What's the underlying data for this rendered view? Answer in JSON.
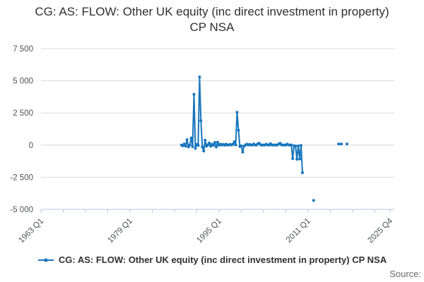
{
  "title": "CG: AS: FLOW: Other UK equity (inc direct investment in property) CP NSA",
  "source_label": "Source:",
  "legend": {
    "series_label": "CG: AS: FLOW: Other UK equity (inc direct investment in property) CP NSA",
    "marker_icon": "line-with-dot-icon"
  },
  "colors": {
    "series": "#1776bd",
    "grid": "#d8d8d8",
    "axis": "#b9c9d9",
    "tick_label": "#4e5256",
    "title_text": "#2f2f2f",
    "source_text": "#6b6b6b"
  },
  "chart_data": {
    "type": "line",
    "title": "CG: AS: FLOW: Other UK equity (inc direct investment in property) CP NSA",
    "xlabel": "",
    "ylabel": "",
    "grid": "horizontal",
    "legend_position": "bottom",
    "y_axis": {
      "min": -5000,
      "max": 7500,
      "ticks": [
        {
          "v": 7500,
          "label": "7 500"
        },
        {
          "v": 5000,
          "label": "5 000"
        },
        {
          "v": 2500,
          "label": "2 500"
        },
        {
          "v": 0,
          "label": "0"
        },
        {
          "v": -2500,
          "label": "-2 500"
        },
        {
          "v": -5000,
          "label": "-5 000"
        }
      ]
    },
    "x_axis": {
      "min_t": 1963.0,
      "max_t": 2025.75,
      "minor_ticks": [
        1963,
        1967,
        1971,
        1975,
        1979,
        1983,
        1987,
        1991,
        1995,
        1999,
        2003,
        2007,
        2011,
        2015,
        2019,
        2023,
        2025.75
      ],
      "labeled_ticks": [
        {
          "label": "1963 Q1",
          "t": 1963.0
        },
        {
          "label": "1979 Q1",
          "t": 1979.0
        },
        {
          "label": "1995 Q1",
          "t": 1995.0
        },
        {
          "label": "2011 Q1",
          "t": 2011.0
        },
        {
          "label": "2025 Q4",
          "t": 2025.75
        }
      ]
    },
    "series": [
      {
        "name": "CG: AS: FLOW: Other UK equity (inc direct investment in property) CP NSA",
        "color": "#1776bd",
        "segments": [
          [
            [
              "1988 Q2",
              0
            ],
            [
              "1988 Q3",
              -60
            ],
            [
              "1988 Q4",
              80
            ],
            [
              "1989 Q1",
              -80
            ],
            [
              "1989 Q2",
              420
            ],
            [
              "1989 Q3",
              -150
            ],
            [
              "1989 Q4",
              0
            ],
            [
              "1990 Q1",
              560
            ],
            [
              "1990 Q2",
              -120
            ],
            [
              "1990 Q3",
              3950
            ],
            [
              "1990 Q4",
              -260
            ],
            [
              "1991 Q1",
              50
            ],
            [
              "1991 Q2",
              -30
            ],
            [
              "1991 Q3",
              5300
            ],
            [
              "1991 Q4",
              1900
            ],
            [
              "1992 Q1",
              -150
            ],
            [
              "1992 Q2",
              -460
            ],
            [
              "1992 Q3",
              380
            ],
            [
              "1992 Q4",
              -90
            ],
            [
              "1993 Q1",
              20
            ],
            [
              "1993 Q2",
              160
            ],
            [
              "1993 Q3",
              -90
            ],
            [
              "1993 Q4",
              70
            ],
            [
              "1994 Q1",
              -20
            ],
            [
              "1994 Q2",
              210
            ],
            [
              "1994 Q3",
              -150
            ],
            [
              "1994 Q4",
              220
            ],
            [
              "1995 Q1",
              -10
            ],
            [
              "1995 Q2",
              70
            ],
            [
              "1995 Q3",
              0
            ],
            [
              "1995 Q4",
              60
            ],
            [
              "1996 Q1",
              -10
            ],
            [
              "1996 Q2",
              70
            ],
            [
              "1996 Q3",
              0
            ],
            [
              "1996 Q4",
              10
            ],
            [
              "1997 Q1",
              60
            ],
            [
              "1997 Q2",
              0
            ],
            [
              "1997 Q3",
              70
            ],
            [
              "1997 Q4",
              260
            ],
            [
              "1998 Q1",
              10
            ],
            [
              "1998 Q2",
              2550
            ],
            [
              "1998 Q3",
              1150
            ],
            [
              "1998 Q4",
              -110
            ],
            [
              "1999 Q1",
              -60
            ],
            [
              "1999 Q2",
              -550
            ],
            [
              "1999 Q3",
              -90
            ],
            [
              "1999 Q4",
              10
            ],
            [
              "2000 Q1",
              70
            ],
            [
              "2000 Q2",
              0
            ],
            [
              "2000 Q3",
              60
            ],
            [
              "2000 Q4",
              0
            ],
            [
              "2001 Q1",
              10
            ],
            [
              "2001 Q2",
              90
            ],
            [
              "2001 Q3",
              0
            ],
            [
              "2001 Q4",
              10
            ],
            [
              "2002 Q1",
              110
            ],
            [
              "2002 Q2",
              130
            ],
            [
              "2002 Q3",
              10
            ],
            [
              "2002 Q4",
              0
            ],
            [
              "2003 Q1",
              10
            ],
            [
              "2003 Q2",
              0
            ],
            [
              "2003 Q3",
              70
            ],
            [
              "2003 Q4",
              10
            ],
            [
              "2004 Q1",
              0
            ],
            [
              "2004 Q2",
              110
            ],
            [
              "2004 Q3",
              10
            ],
            [
              "2004 Q4",
              0
            ],
            [
              "2005 Q1",
              10
            ],
            [
              "2005 Q2",
              0
            ],
            [
              "2005 Q3",
              10
            ],
            [
              "2005 Q4",
              90
            ],
            [
              "2006 Q1",
              140
            ],
            [
              "2006 Q2",
              10
            ],
            [
              "2006 Q3",
              0
            ],
            [
              "2006 Q4",
              10
            ],
            [
              "2007 Q1",
              0
            ],
            [
              "2007 Q2",
              70
            ],
            [
              "2007 Q3",
              10
            ],
            [
              "2007 Q4",
              0
            ],
            [
              "2008 Q1",
              10
            ],
            [
              "2008 Q2",
              -1050
            ],
            [
              "2008 Q3",
              -50
            ],
            [
              "2008 Q4",
              -70
            ],
            [
              "2009 Q1",
              -1100
            ],
            [
              "2009 Q2",
              -60
            ],
            [
              "2009 Q3",
              -1080
            ],
            [
              "2009 Q4",
              -30
            ],
            [
              "2010 Q1",
              -2150
            ]
          ],
          [
            [
              "2012 Q1",
              -4300
            ]
          ],
          [
            [
              "2016 Q3",
              80
            ],
            [
              "2017 Q1",
              80
            ]
          ],
          [
            [
              "2018 Q1",
              80
            ]
          ]
        ]
      }
    ]
  }
}
